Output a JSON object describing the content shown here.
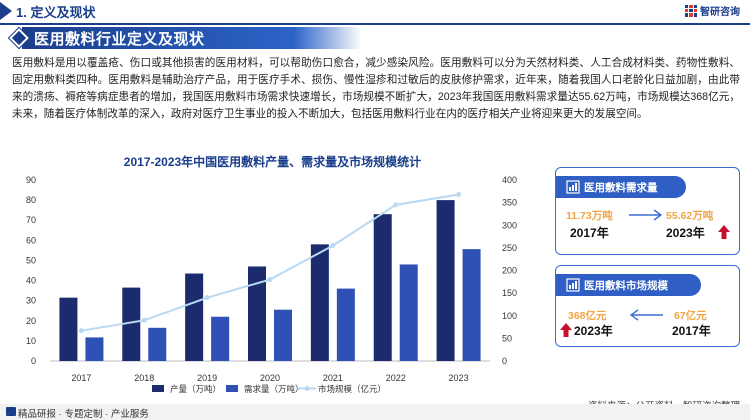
{
  "header": {
    "section_title": "1. 定义及现状",
    "brand": "智研咨询"
  },
  "banner": {
    "title": "医用敷料行业定义及现状"
  },
  "intro": "医用敷料是用以覆盖疮、伤口或其他损害的医用材料，可以帮助伤口愈合，减少感染风险。医用敷料可以分为天然材料类、人工合成材料类、药物性敷料、固定用敷料类四种。医用敷料是辅助治疗产品，用于医疗手术、损伤、慢性湿疹和过敏后的皮肤修护需求，近年来，随着我国人口老龄化日益加剧，由此带来的溃疡、褥疮等病症患者的增加，我国医用敷料市场需求快速增长，市场规模不断扩大，2023年我国医用敷料需求量达55.62万吨，市场规模达368亿元，未来，随着医疗体制改革的深入，政府对医疗卫生事业的投入不断加大，包括医用敷料行业在内的医疗相关产业将迎来更大的发展空间。",
  "chart_data": {
    "type": "bar",
    "title": "2017-2023年中国医用敷料产量、需求量及市场规模统计",
    "categories": [
      "2017",
      "2018",
      "2019",
      "2020",
      "2021",
      "2022",
      "2023"
    ],
    "series": [
      {
        "name": "产量（万吨）",
        "kind": "bar",
        "axis": "left",
        "color": "#1c2a6e",
        "values": [
          31.5,
          36.5,
          43.5,
          47,
          58,
          73,
          80
        ]
      },
      {
        "name": "需求量（万吨）",
        "kind": "bar",
        "axis": "left",
        "color": "#2f50b4",
        "values": [
          11.73,
          16.5,
          22,
          25.5,
          36,
          48,
          55.62
        ]
      },
      {
        "name": "市场规模（亿元）",
        "kind": "line",
        "axis": "right",
        "color": "#b9d8f2",
        "values": [
          67,
          90,
          140,
          180,
          255,
          345,
          368
        ]
      }
    ],
    "y_left": {
      "min": 0,
      "max": 90,
      "ticks": [
        "0",
        "10",
        "20",
        "30",
        "40",
        "50",
        "60",
        "70",
        "80",
        "90"
      ]
    },
    "y_right": {
      "min": 0,
      "max": 400,
      "ticks": [
        "0",
        "50",
        "100",
        "150",
        "200",
        "250",
        "300",
        "350",
        "400"
      ]
    },
    "legend_position": "bottom",
    "grid": false
  },
  "cards": {
    "demand": {
      "title": "医用敷料需求量",
      "from_value": "11.73万吨",
      "from_year": "2017年",
      "to_value": "55.62万吨",
      "to_year": "2023年"
    },
    "market": {
      "title": "医用敷料市场规模",
      "left_value": "368亿元",
      "left_year": "2023年",
      "right_value": "67亿元",
      "right_year": "2017年"
    }
  },
  "source": "资料来源：公开资料、智研咨询整理",
  "footer": "精品研报 · 专题定制 · 产业服务",
  "colors": {
    "primary": "#1a3e8c",
    "accent_orange": "#f0a444",
    "up_arrow": "#c8102e"
  }
}
